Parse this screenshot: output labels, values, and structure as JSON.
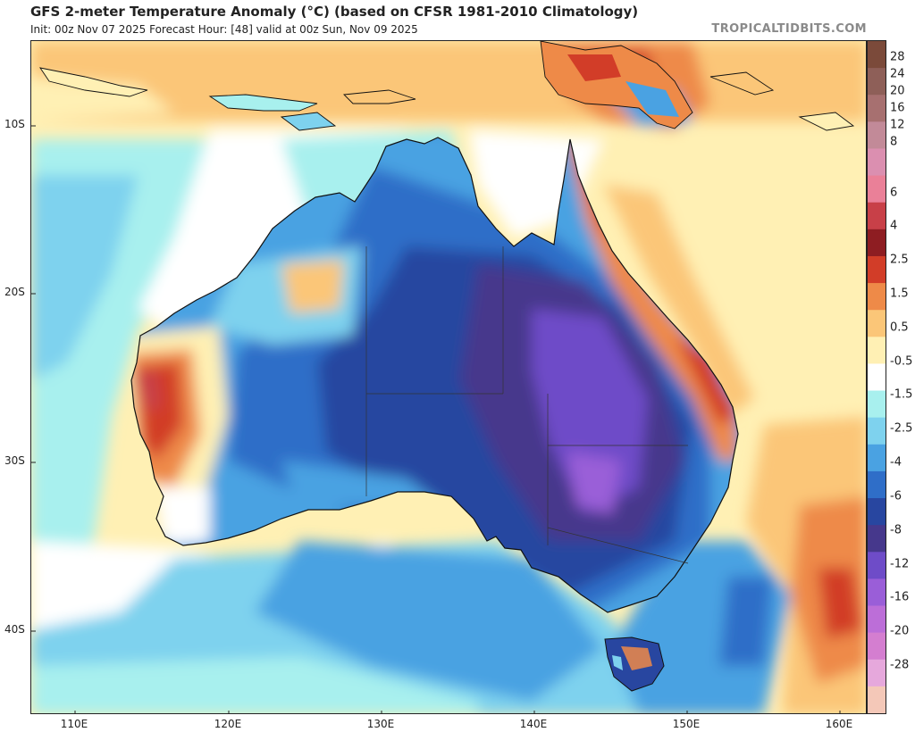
{
  "header": {
    "title": "GFS 2-meter Temperature Anomaly (°C) (based on CFSR 1981-2010 Climatology)",
    "subtitle": "Init: 00z Nov 07 2025   Forecast Hour: [48]   valid at 00z Sun, Nov 09 2025",
    "brand": "TROPICALTIDBITS.COM"
  },
  "map": {
    "lat_labels": [
      "10S",
      "20S",
      "30S",
      "40S"
    ],
    "lon_labels": [
      "110E",
      "120E",
      "130E",
      "140E",
      "150E",
      "160E"
    ]
  },
  "colorbar": {
    "labels": [
      "28",
      "24",
      "20",
      "16",
      "12",
      "8",
      "6",
      "4",
      "2.5",
      "1.5",
      "0.5",
      "-0.5",
      "-1.5",
      "-2.5",
      "-4",
      "-6",
      "-8",
      "-12",
      "-16",
      "-20",
      "-28"
    ],
    "colors": [
      "#7b4a3a",
      "#8e5f58",
      "#a77070",
      "#c28a98",
      "#db8fb0",
      "#ea8098",
      "#c84048",
      "#8e1d22",
      "#d23d28",
      "#ee8a48",
      "#fbc678",
      "#fff0b4",
      "#ffffff",
      "#a8f0ee",
      "#7ed2ee",
      "#4aa2e2",
      "#2f6ec8",
      "#2846a0",
      "#46388c",
      "#6e4cc8",
      "#9a5ed8",
      "#bc6ed8",
      "#d47ed0",
      "#e6a8dc",
      "#f4c8b8"
    ]
  }
}
